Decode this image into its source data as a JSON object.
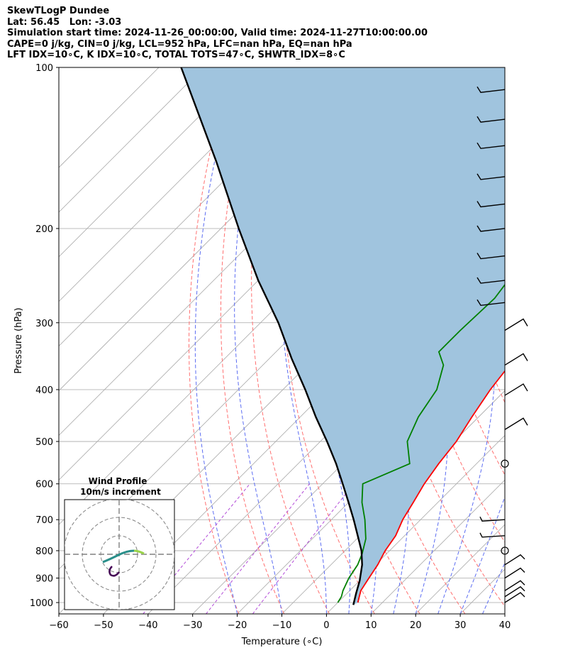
{
  "header": {
    "title": "SkewTLogP Dundee",
    "location": "Lat: 56.45   Lon: -3.03",
    "times": "Simulation start time: 2024-11-26_00:00:00, Valid time: 2024-11-27T10:00:00.00",
    "indices1": "CAPE=0 j/kg, CIN=0 j/kg, LCL=952 hPa, LFC=nan hPa, EQ=nan hPa",
    "indices2": "LFT IDX=10∘C, K IDX=10∘C, TOTAL TOTS=47∘C, SHWTR_IDX=8∘C"
  },
  "chart_data": {
    "type": "line",
    "subtype": "skew-t log-p",
    "xlabel": "Temperature (∘C)",
    "ylabel": "Pressure (hPa)",
    "xlim": [
      -60,
      40
    ],
    "ylim": [
      1050,
      100
    ],
    "x_ticks": [
      -60,
      -50,
      -40,
      -30,
      -20,
      -10,
      0,
      10,
      20,
      30,
      40
    ],
    "x_tick_labels": [
      "−60",
      "−50",
      "−40",
      "−30",
      "−20",
      "−10",
      "0",
      "10",
      "20",
      "30",
      "40"
    ],
    "y_ticks": [
      100,
      200,
      300,
      400,
      500,
      600,
      700,
      800,
      900,
      1000
    ],
    "y_tick_labels": [
      "100",
      "200",
      "300",
      "400",
      "500",
      "600",
      "700",
      "800",
      "900",
      "1000"
    ],
    "series": [
      {
        "name": "Temperature",
        "color": "#ff0000",
        "points": [
          [
            4.5,
            1000
          ],
          [
            3.5,
            975
          ],
          [
            2.5,
            950
          ],
          [
            1.5,
            900
          ],
          [
            0.5,
            850
          ],
          [
            -1,
            800
          ],
          [
            -2,
            750
          ],
          [
            -4,
            700
          ],
          [
            -5.5,
            650
          ],
          [
            -7.2,
            600
          ],
          [
            -8.5,
            550
          ],
          [
            -9.5,
            500
          ],
          [
            -11.5,
            450
          ],
          [
            -13.5,
            400
          ],
          [
            -15,
            350
          ],
          [
            -16,
            300
          ],
          [
            -17,
            275
          ],
          [
            -17.5,
            250
          ],
          [
            -17.5,
            225
          ],
          [
            -18.5,
            200
          ],
          [
            -20,
            175
          ],
          [
            -22,
            150
          ],
          [
            -25,
            130
          ],
          [
            -28.5,
            115
          ],
          [
            -32,
            100
          ]
        ]
      },
      {
        "name": "Dewpoint",
        "color": "#008000",
        "points": [
          [
            0,
            1000
          ],
          [
            -0.5,
            975
          ],
          [
            -1.5,
            950
          ],
          [
            -3,
            900
          ],
          [
            -4,
            850
          ],
          [
            -5.5,
            810
          ],
          [
            -8,
            760
          ],
          [
            -12.5,
            700
          ],
          [
            -17,
            650
          ],
          [
            -21,
            600
          ],
          [
            -15,
            550
          ],
          [
            -20.5,
            500
          ],
          [
            -23.5,
            450
          ],
          [
            -25.5,
            400
          ],
          [
            -29.5,
            360
          ],
          [
            -33.5,
            340
          ],
          [
            -33.5,
            310
          ],
          [
            -33,
            270
          ],
          [
            -34.5,
            240
          ],
          [
            -37,
            200
          ],
          [
            -39.5,
            180
          ],
          [
            -43,
            160
          ],
          [
            -46,
            140
          ],
          [
            -48.5,
            120
          ],
          [
            -50.5,
            100
          ]
        ]
      },
      {
        "name": "Parcel",
        "color": "#000000",
        "points": [
          [
            4,
            1010
          ],
          [
            2,
            960
          ],
          [
            0,
            910
          ],
          [
            -3,
            850
          ],
          [
            -6.3,
            800
          ],
          [
            -10.5,
            750
          ],
          [
            -15,
            700
          ],
          [
            -20,
            650
          ],
          [
            -25.5,
            600
          ],
          [
            -31.5,
            550
          ],
          [
            -38.5,
            500
          ],
          [
            -46.5,
            450
          ],
          [
            -55,
            400
          ],
          [
            -65,
            350
          ],
          [
            -76,
            300
          ],
          [
            -90,
            250
          ],
          [
            -106,
            200
          ],
          [
            -126,
            150
          ],
          [
            -155,
            100
          ]
        ]
      }
    ],
    "wind_barbs": [
      {
        "p": 1000,
        "type": "barb"
      },
      {
        "p": 975,
        "type": "barb"
      },
      {
        "p": 950,
        "type": "barb"
      },
      {
        "p": 900,
        "type": "barb"
      },
      {
        "p": 850,
        "type": "barb"
      },
      {
        "p": 800,
        "type": "calm"
      },
      {
        "p": 750,
        "type": "barb"
      },
      {
        "p": 700,
        "type": "barb"
      },
      {
        "p": 550,
        "type": "calm"
      },
      {
        "p": 475,
        "type": "barb"
      },
      {
        "p": 410,
        "type": "barb"
      },
      {
        "p": 360,
        "type": "barb"
      },
      {
        "p": 310,
        "type": "barb"
      },
      {
        "p": 275,
        "type": "barb"
      },
      {
        "p": 250,
        "type": "barb"
      },
      {
        "p": 225,
        "type": "barb"
      },
      {
        "p": 200,
        "type": "barb"
      },
      {
        "p": 180,
        "type": "barb"
      },
      {
        "p": 160,
        "type": "barb"
      },
      {
        "p": 140,
        "type": "barb"
      },
      {
        "p": 125,
        "type": "barb"
      },
      {
        "p": 110,
        "type": "barb"
      }
    ],
    "inset": {
      "title": "Wind Profile",
      "subtitle": "10m/s increment",
      "rings_ms": [
        10,
        20,
        30
      ]
    },
    "colors": {
      "temperature": "#ff0000",
      "dewpoint": "#008000",
      "parcel": "#000000",
      "shade": "#a0c4de",
      "dry_adiabat": "#ff6f6f",
      "moist_adiabat": "#5b6cf2",
      "isotherm": "#a8a8a8",
      "mixing_ratio": "#b24ad8"
    }
  }
}
